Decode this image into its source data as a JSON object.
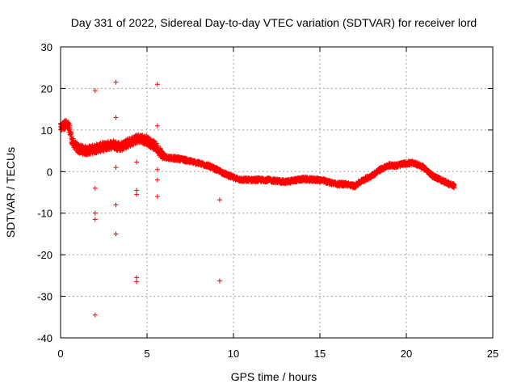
{
  "chart_data": {
    "type": "scatter",
    "title": "Day 331 of 2022, Sidereal Day-to-day VTEC variation (SDTVAR) for receiver lord",
    "xlabel": "GPS time / hours",
    "ylabel": "SDTVAR / TECUs",
    "xlim": [
      0,
      25
    ],
    "ylim": [
      -40,
      30
    ],
    "xticks": [
      0,
      5,
      10,
      15,
      20,
      25
    ],
    "yticks": [
      -40,
      -30,
      -20,
      -10,
      0,
      10,
      20,
      30
    ],
    "grid": true,
    "marker": "+",
    "color": "#ff0000",
    "main_track": [
      [
        0.0,
        10.5
      ],
      [
        0.3,
        11.5
      ],
      [
        0.5,
        10.5
      ],
      [
        0.7,
        7.0
      ],
      [
        1.0,
        5.5
      ],
      [
        1.5,
        5.0
      ],
      [
        2.0,
        5.5
      ],
      [
        2.5,
        6.0
      ],
      [
        3.0,
        6.5
      ],
      [
        3.5,
        6.0
      ],
      [
        4.0,
        7.0
      ],
      [
        4.5,
        8.0
      ],
      [
        5.0,
        7.5
      ],
      [
        5.5,
        6.0
      ],
      [
        6.0,
        3.5
      ],
      [
        7.0,
        3.0
      ],
      [
        7.5,
        2.5
      ],
      [
        8.0,
        2.0
      ],
      [
        8.5,
        1.5
      ],
      [
        9.0,
        0.5
      ],
      [
        9.5,
        -0.5
      ],
      [
        10.0,
        -1.5
      ],
      [
        10.5,
        -2.0
      ],
      [
        11.0,
        -2.0
      ],
      [
        12.0,
        -2.0
      ],
      [
        13.0,
        -2.5
      ],
      [
        14.0,
        -1.8
      ],
      [
        15.0,
        -2.0
      ],
      [
        15.5,
        -2.5
      ],
      [
        16.0,
        -3.0
      ],
      [
        16.5,
        -3.0
      ],
      [
        17.0,
        -3.5
      ],
      [
        17.5,
        -2.0
      ],
      [
        18.0,
        -1.0
      ],
      [
        18.5,
        0.5
      ],
      [
        19.0,
        1.5
      ],
      [
        19.5,
        1.5
      ],
      [
        20.0,
        2.0
      ],
      [
        20.5,
        2.0
      ],
      [
        21.0,
        1.0
      ],
      [
        21.5,
        -1.0
      ],
      [
        22.0,
        -2.0
      ],
      [
        22.5,
        -3.0
      ],
      [
        22.8,
        -3.5
      ]
    ],
    "outliers": [
      [
        2.0,
        19.5
      ],
      [
        2.0,
        -4.0
      ],
      [
        2.0,
        -10.0
      ],
      [
        2.0,
        -11.5
      ],
      [
        2.0,
        -34.5
      ],
      [
        3.2,
        21.5
      ],
      [
        3.2,
        13.0
      ],
      [
        3.2,
        1.0
      ],
      [
        3.2,
        -8.0
      ],
      [
        3.2,
        -15.0
      ],
      [
        4.4,
        2.3
      ],
      [
        4.4,
        -4.5
      ],
      [
        4.4,
        -5.5
      ],
      [
        4.4,
        -25.5
      ],
      [
        4.4,
        -26.5
      ],
      [
        5.6,
        21.0
      ],
      [
        5.6,
        11.0
      ],
      [
        5.6,
        0.5
      ],
      [
        5.6,
        -2.0
      ],
      [
        5.6,
        -6.0
      ],
      [
        9.2,
        -6.8
      ],
      [
        9.2,
        -26.3
      ]
    ]
  }
}
